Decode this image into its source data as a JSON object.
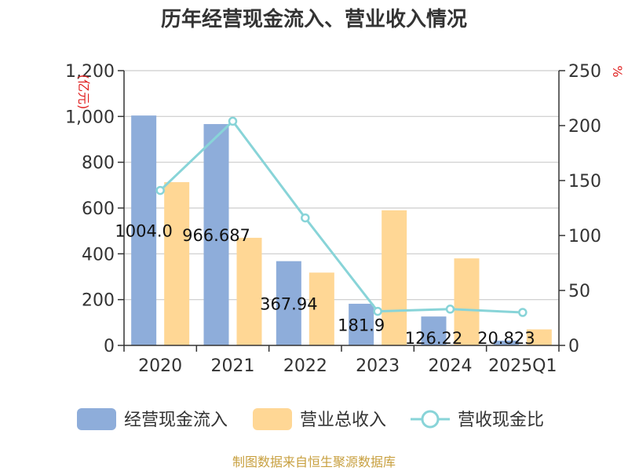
{
  "title": "历年经营现金流入、营业收入情况",
  "footer": "制图数据来自恒生聚源数据库",
  "colors": {
    "cash_inflow": "#8eadda",
    "revenue": "#ffd795",
    "ratio": "#88d4d8",
    "axis": "#333333",
    "grid": "#cccccc",
    "unit_red": "#e02020"
  },
  "chart_data": {
    "type": "bar",
    "categories": [
      "2020",
      "2021",
      "2022",
      "2023",
      "2024",
      "2025Q1"
    ],
    "y_left": {
      "unit": "(亿元)",
      "ylim": [
        0,
        1200
      ],
      "ticks": [
        0,
        200,
        400,
        600,
        800,
        1000,
        1200
      ],
      "tick_labels": [
        "0",
        "200",
        "400",
        "600",
        "800",
        "1,000",
        "1,200"
      ]
    },
    "y_right": {
      "unit": "%",
      "ylim": [
        0,
        250
      ],
      "ticks": [
        0,
        50,
        100,
        150,
        200,
        250
      ],
      "tick_labels": [
        "0",
        "50",
        "100",
        "150",
        "200",
        "250"
      ]
    },
    "series": [
      {
        "name": "经营现金流入",
        "kind": "bar",
        "axis": "left",
        "values": [
          1004.0,
          966.687,
          367.94,
          181.9,
          126.22,
          20.823
        ],
        "labels": [
          "1004.0",
          "966.687",
          "367.94",
          "181.9",
          "126.22",
          "20.823"
        ]
      },
      {
        "name": "营业总收入",
        "kind": "bar",
        "axis": "left",
        "values": [
          713,
          470,
          318,
          590,
          380,
          70
        ]
      },
      {
        "name": "营收现金比",
        "kind": "line",
        "axis": "right",
        "values": [
          141,
          204,
          116,
          31,
          33,
          30
        ]
      }
    ],
    "grid": true,
    "legend": "bottom"
  }
}
